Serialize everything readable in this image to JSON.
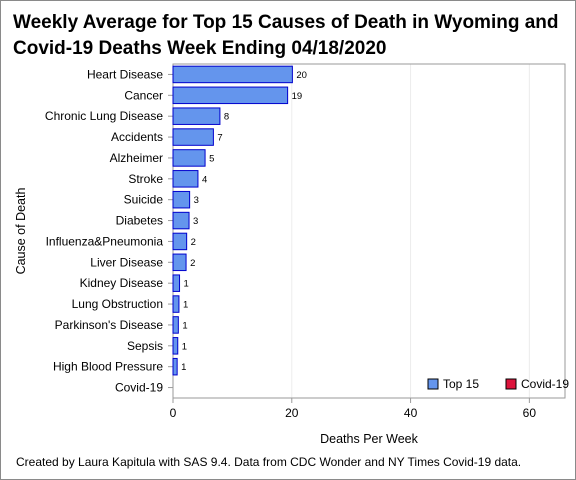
{
  "title": "Weekly Average for Top 15 Causes of Death in Wyoming and Covid-19 Deaths Week Ending 04/18/2020",
  "footnote": "Created by Laura Kapitula with SAS 9.4. Data from CDC Wonder and NY Times Covid-19 data.",
  "colors": {
    "top15": "#6495ED",
    "top15_border": "#0000CD",
    "covid": "#DC143C",
    "grid": "#ececec",
    "axis": "#9a9a9a"
  },
  "chart_data": {
    "type": "bar",
    "orientation": "horizontal",
    "categories": [
      "Heart Disease",
      "Cancer",
      "Chronic Lung Disease",
      "Accidents",
      "Alzheimer",
      "Stroke",
      "Suicide",
      "Diabetes",
      "Influenza&Pneumonia",
      "Liver Disease",
      "Kidney Disease",
      "Lung Obstruction",
      "Parkinson's Disease",
      "Sepsis",
      "High Blood Pressure",
      "Covid-19"
    ],
    "series": [
      {
        "name": "Top 15",
        "values": [
          20.1,
          19.3,
          7.9,
          6.8,
          5.4,
          4.2,
          2.8,
          2.7,
          2.3,
          2.2,
          1.1,
          1.0,
          0.9,
          0.8,
          0.7,
          null
        ],
        "labels": [
          "20",
          "19",
          "8",
          "7",
          "5",
          "4",
          "3",
          "3",
          "2",
          "2",
          "1",
          "1",
          "1",
          "1",
          "1",
          ""
        ]
      },
      {
        "name": "Covid-19",
        "values": [
          null,
          null,
          null,
          null,
          null,
          null,
          null,
          null,
          null,
          null,
          null,
          null,
          null,
          null,
          null,
          0
        ],
        "labels": [
          "",
          "",
          "",
          "",
          "",
          "",
          "",
          "",
          "",
          "",
          "",
          "",
          "",
          "",
          "",
          ""
        ]
      }
    ],
    "xlabel": "Deaths Per Week",
    "ylabel": "Cause of Death",
    "xlim": [
      0,
      66
    ],
    "xticks": [
      0,
      20,
      40,
      60
    ],
    "grid": true,
    "legend_position": "bottom-right"
  }
}
